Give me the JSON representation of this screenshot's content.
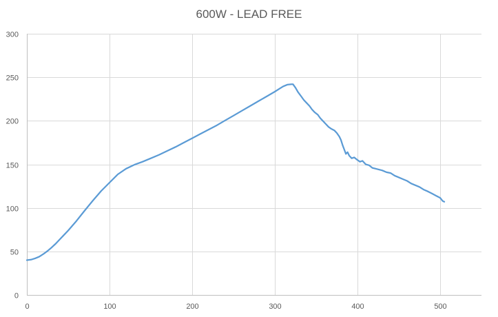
{
  "chart_data": {
    "type": "line",
    "title": "600W - LEAD FREE",
    "xlabel": "",
    "ylabel": "",
    "xlim": [
      0,
      550
    ],
    "ylim": [
      0,
      300
    ],
    "x_ticks": [
      0,
      100,
      200,
      300,
      400,
      500
    ],
    "y_ticks": [
      0,
      50,
      100,
      150,
      200,
      250,
      300
    ],
    "grid": true,
    "legend": "none",
    "series": [
      {
        "color": "#5b9bd5",
        "points": [
          [
            0,
            40
          ],
          [
            5,
            40.5
          ],
          [
            10,
            42
          ],
          [
            15,
            44
          ],
          [
            20,
            47
          ],
          [
            25,
            50.5
          ],
          [
            30,
            54.5
          ],
          [
            35,
            59
          ],
          [
            40,
            64
          ],
          [
            45,
            69
          ],
          [
            50,
            74
          ],
          [
            60,
            85
          ],
          [
            70,
            97
          ],
          [
            80,
            108.5
          ],
          [
            90,
            119.5
          ],
          [
            100,
            129
          ],
          [
            110,
            138.5
          ],
          [
            120,
            145
          ],
          [
            130,
            149.5
          ],
          [
            140,
            153
          ],
          [
            150,
            157
          ],
          [
            160,
            161
          ],
          [
            170,
            165.5
          ],
          [
            180,
            170
          ],
          [
            190,
            175
          ],
          [
            200,
            180
          ],
          [
            210,
            185
          ],
          [
            220,
            190
          ],
          [
            230,
            195
          ],
          [
            240,
            200.5
          ],
          [
            250,
            206
          ],
          [
            260,
            211.5
          ],
          [
            270,
            217
          ],
          [
            280,
            222.5
          ],
          [
            290,
            228
          ],
          [
            300,
            233.5
          ],
          [
            305,
            236.5
          ],
          [
            310,
            239.5
          ],
          [
            315,
            241.5
          ],
          [
            320,
            242
          ],
          [
            322,
            242
          ],
          [
            325,
            238
          ],
          [
            328,
            233
          ],
          [
            332,
            228
          ],
          [
            335,
            224
          ],
          [
            338,
            221
          ],
          [
            342,
            217
          ],
          [
            345,
            213
          ],
          [
            348,
            210
          ],
          [
            352,
            207
          ],
          [
            355,
            203
          ],
          [
            358,
            200
          ],
          [
            362,
            196
          ],
          [
            365,
            193
          ],
          [
            368,
            191
          ],
          [
            372,
            189
          ],
          [
            375,
            186
          ],
          [
            378,
            182
          ],
          [
            380,
            178
          ],
          [
            382,
            172
          ],
          [
            384,
            167
          ],
          [
            386,
            162
          ],
          [
            388,
            164
          ],
          [
            390,
            160
          ],
          [
            393,
            157
          ],
          [
            396,
            158
          ],
          [
            400,
            155
          ],
          [
            403,
            153
          ],
          [
            406,
            154
          ],
          [
            410,
            150
          ],
          [
            414,
            149
          ],
          [
            418,
            146
          ],
          [
            422,
            145
          ],
          [
            426,
            144
          ],
          [
            430,
            143
          ],
          [
            435,
            141
          ],
          [
            440,
            140
          ],
          [
            445,
            137
          ],
          [
            450,
            135
          ],
          [
            455,
            133
          ],
          [
            460,
            131
          ],
          [
            465,
            128
          ],
          [
            470,
            126
          ],
          [
            475,
            124
          ],
          [
            480,
            121
          ],
          [
            485,
            119
          ],
          [
            490,
            116.5
          ],
          [
            495,
            114
          ],
          [
            500,
            111.5
          ],
          [
            503,
            108
          ],
          [
            505,
            107
          ]
        ]
      }
    ]
  }
}
